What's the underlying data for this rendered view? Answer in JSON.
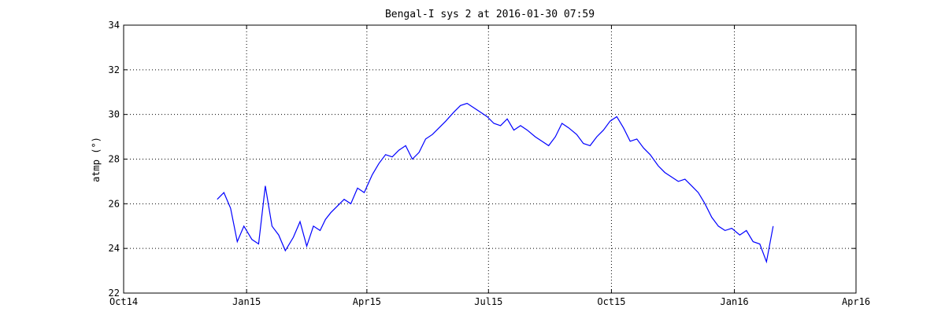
{
  "chart_data": {
    "type": "line",
    "title": "Bengal-I sys 2 at 2016-01-30 07:59",
    "xlabel": "",
    "ylabel": "atmp (°)",
    "x_ticks": [
      "Oct14",
      "Jan15",
      "Apr15",
      "Jul15",
      "Oct15",
      "Jan16",
      "Apr16"
    ],
    "xlim": [
      "2014-10-01",
      "2016-04-01"
    ],
    "ylim": [
      22,
      34
    ],
    "y_ticks": [
      22,
      24,
      26,
      28,
      30,
      32,
      34
    ],
    "grid": true,
    "line_color": "#0000ff",
    "series": [
      {
        "name": "",
        "x": [
          "2014-12-10",
          "2014-12-15",
          "2014-12-20",
          "2014-12-25",
          "2014-12-30",
          "2015-01-05",
          "2015-01-10",
          "2015-01-15",
          "2015-01-20",
          "2015-01-25",
          "2015-01-30",
          "2015-02-05",
          "2015-02-10",
          "2015-02-15",
          "2015-02-20",
          "2015-02-25",
          "2015-03-01",
          "2015-03-05",
          "2015-03-10",
          "2015-03-15",
          "2015-03-20",
          "2015-03-25",
          "2015-03-30",
          "2015-04-05",
          "2015-04-10",
          "2015-04-15",
          "2015-04-20",
          "2015-04-25",
          "2015-04-30",
          "2015-05-05",
          "2015-05-10",
          "2015-05-15",
          "2015-05-20",
          "2015-05-25",
          "2015-05-30",
          "2015-06-05",
          "2015-06-10",
          "2015-06-15",
          "2015-06-20",
          "2015-06-25",
          "2015-06-30",
          "2015-07-05",
          "2015-07-10",
          "2015-07-15",
          "2015-07-20",
          "2015-07-25",
          "2015-07-30",
          "2015-08-05",
          "2015-08-10",
          "2015-08-15",
          "2015-08-20",
          "2015-08-25",
          "2015-08-30",
          "2015-09-05",
          "2015-09-10",
          "2015-09-15",
          "2015-09-20",
          "2015-09-25",
          "2015-09-30",
          "2015-10-05",
          "2015-10-10",
          "2015-10-15",
          "2015-10-20",
          "2015-10-25",
          "2015-10-30",
          "2015-11-05",
          "2015-11-10",
          "2015-11-15",
          "2015-11-20",
          "2015-11-25",
          "2015-11-30",
          "2015-12-05",
          "2015-12-10",
          "2015-12-15",
          "2015-12-20",
          "2015-12-25",
          "2015-12-30",
          "2016-01-05",
          "2016-01-10",
          "2016-01-15",
          "2016-01-20",
          "2016-01-25",
          "2016-01-30"
        ],
        "y": [
          26.2,
          26.5,
          25.8,
          24.3,
          25.0,
          24.4,
          24.2,
          26.8,
          25.0,
          24.6,
          23.9,
          24.5,
          25.2,
          24.1,
          25.0,
          24.8,
          25.3,
          25.6,
          25.9,
          26.2,
          26.0,
          26.7,
          26.5,
          27.3,
          27.8,
          28.2,
          28.1,
          28.4,
          28.6,
          28.0,
          28.3,
          28.9,
          29.1,
          29.4,
          29.7,
          30.1,
          30.4,
          30.5,
          30.3,
          30.1,
          29.9,
          29.6,
          29.5,
          29.8,
          29.3,
          29.5,
          29.3,
          29.0,
          28.8,
          28.6,
          29.0,
          29.6,
          29.4,
          29.1,
          28.7,
          28.6,
          29.0,
          29.3,
          29.7,
          29.9,
          29.4,
          28.8,
          28.9,
          28.5,
          28.2,
          27.7,
          27.4,
          27.2,
          27.0,
          27.1,
          26.8,
          26.5,
          26.0,
          25.4,
          25.0,
          24.8,
          24.9,
          24.6,
          24.8,
          24.3,
          24.2,
          23.4,
          25.0
        ]
      }
    ]
  }
}
